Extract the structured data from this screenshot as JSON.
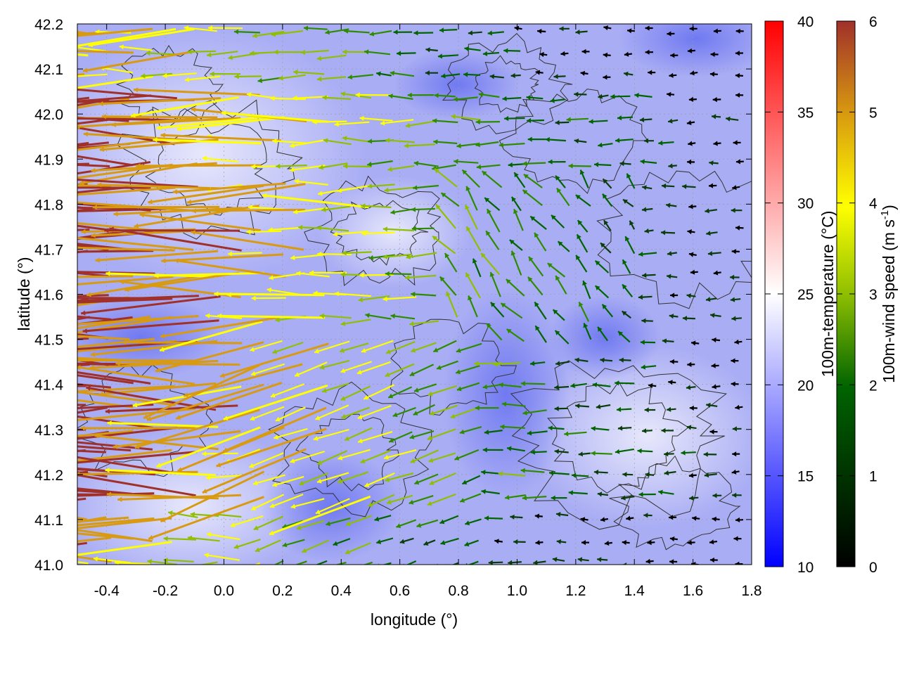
{
  "chart_data": {
    "type": "heatmap",
    "subtype": "wind vector field over temperature map with contours",
    "title": "",
    "xlabel": "longitude (°)",
    "ylabel": "latitude (°)",
    "xlim": [
      -0.5,
      1.8
    ],
    "ylim": [
      41.0,
      42.2
    ],
    "x_ticks": [
      "-0.4",
      "-0.2",
      "0.0",
      "0.2",
      "0.4",
      "0.6",
      "0.8",
      "1.0",
      "1.2",
      "1.4",
      "1.6",
      "1.8"
    ],
    "y_ticks": [
      "41.0",
      "41.1",
      "41.2",
      "41.3",
      "41.4",
      "41.5",
      "41.6",
      "41.7",
      "41.8",
      "41.9",
      "42.0",
      "42.1",
      "42.2"
    ],
    "grid": true,
    "colorbars": [
      {
        "label": "100m-temperature (°C)",
        "range": [
          10,
          40
        ],
        "ticks": [
          "10",
          "15",
          "20",
          "25",
          "30",
          "35",
          "40"
        ],
        "colormap": [
          "#0000ff",
          "#ffffff",
          "#ff0000"
        ]
      },
      {
        "label": "100m-wind speed (m s",
        "label_superscript": "-1",
        "label_suffix": ")",
        "range": [
          0,
          6
        ],
        "ticks": [
          "0",
          "1",
          "2",
          "3",
          "4",
          "5",
          "6"
        ],
        "colormap": [
          "#000000",
          "#006400",
          "#8fbf00",
          "#ffff00",
          "#d89a10",
          "#a0302a"
        ]
      }
    ],
    "field_description": {
      "temperature_range_visible": [
        15,
        23
      ],
      "wind_direction": "predominantly westward (from east)",
      "strongest_winds": "western half, lat 41.1-42.0, ~5.5-6 m/s",
      "weakest_winds": "eastern half and north, ~0-2 m/s"
    },
    "colors": {
      "cold": "#0000ff",
      "mid": "#ffffff",
      "warm": "#ff0000",
      "contour": "#333333"
    }
  }
}
